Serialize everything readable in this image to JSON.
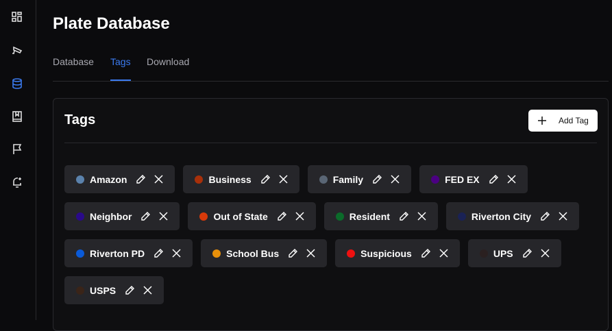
{
  "sidebar": {
    "items": [
      {
        "icon": "dashboard-icon"
      },
      {
        "icon": "camera-icon"
      },
      {
        "icon": "database-icon",
        "active": true
      },
      {
        "icon": "book-icon"
      },
      {
        "icon": "flag-icon"
      },
      {
        "icon": "bell-plus-icon"
      }
    ],
    "accent": "#3b7bf0"
  },
  "header": {
    "title": "Plate Database"
  },
  "tabs": [
    {
      "label": "Database"
    },
    {
      "label": "Tags",
      "active": true
    },
    {
      "label": "Download"
    }
  ],
  "card": {
    "title": "Tags",
    "add_label": "Add Tag"
  },
  "tags": [
    {
      "name": "Amazon",
      "color": "#5b82ac"
    },
    {
      "name": "Business",
      "color": "#a8300a"
    },
    {
      "name": "Family",
      "color": "#5a6675"
    },
    {
      "name": "FED EX",
      "color": "#4b0082"
    },
    {
      "name": "Neighbor",
      "color": "#2a0a8a"
    },
    {
      "name": "Out of State",
      "color": "#d83a0a"
    },
    {
      "name": "Resident",
      "color": "#0b6b2a"
    },
    {
      "name": "Riverton City",
      "color": "#1a2255"
    },
    {
      "name": "Riverton PD",
      "color": "#0a5ad8"
    },
    {
      "name": "School Bus",
      "color": "#e8900a"
    },
    {
      "name": "Suspicious",
      "color": "#ee1010"
    },
    {
      "name": "UPS",
      "color": "#2a2020"
    },
    {
      "name": "USPS",
      "color": "#3a2418"
    }
  ]
}
